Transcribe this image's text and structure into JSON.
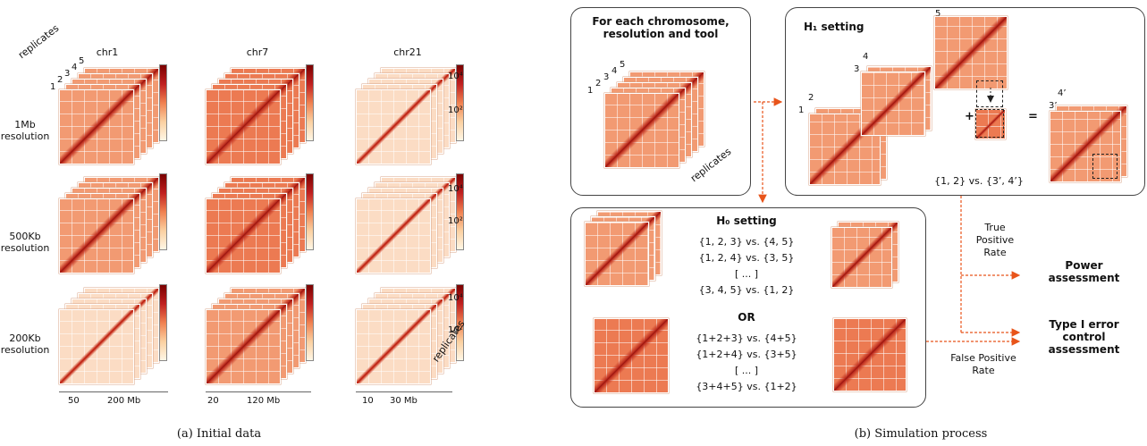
{
  "panel_a": {
    "columns": [
      "chr1",
      "chr7",
      "chr21"
    ],
    "rows": [
      "1Mb\nresolution",
      "500Kb\nresolution",
      "200Kb\nresolution"
    ],
    "replicates_label": "replicates",
    "replicate_numbers": [
      "1",
      "2",
      "3",
      "4",
      "5"
    ],
    "colorbar_ticks": [
      "10⁴",
      "10²"
    ],
    "x_ticks": [
      [
        "50",
        "200 Mb"
      ],
      [
        "20",
        "120 Mb"
      ],
      [
        "10",
        "30 Mb"
      ]
    ],
    "caption": "(a) Initial data"
  },
  "panel_b": {
    "box1_title": "For each chromosome,\nresolution and tool",
    "box1_numbers": [
      "1",
      "2",
      "3",
      "4",
      "5"
    ],
    "box1_replicates": "replicates",
    "h1_title": "H₁ setting",
    "h1_numbers": [
      "5",
      "4",
      "3",
      "2",
      "1"
    ],
    "h1_plus": "+",
    "h1_equals": "=",
    "h1_result_numbers": [
      "3’",
      "4’"
    ],
    "h1_comparison": "{1, 2} vs. {3’, 4’}",
    "h0_title": "H₀ setting",
    "h0_list1": [
      "{1, 2, 3} vs. {4, 5}",
      "{1, 2, 4} vs. {3, 5}",
      "[ ... ]",
      "{3, 4, 5} vs. {1, 2}"
    ],
    "h0_or": "OR",
    "h0_list2": [
      "{1+2+3} vs. {4+5}",
      "{1+2+4} vs. {3+5}",
      "[ ... ]",
      "{3+4+5} vs. {1+2}"
    ],
    "tpr": "True\nPositive\nRate",
    "fpr": "False Positive\nRate",
    "power": "Power\nassessment",
    "type1": "Type I error\ncontrol\nassessment",
    "caption": "(b) Simulation process"
  },
  "colors": {
    "arrow": "#e8541a",
    "heat_low": "#fce4cf",
    "heat_mid": "#f29268",
    "heat_high": "#b81c14"
  }
}
